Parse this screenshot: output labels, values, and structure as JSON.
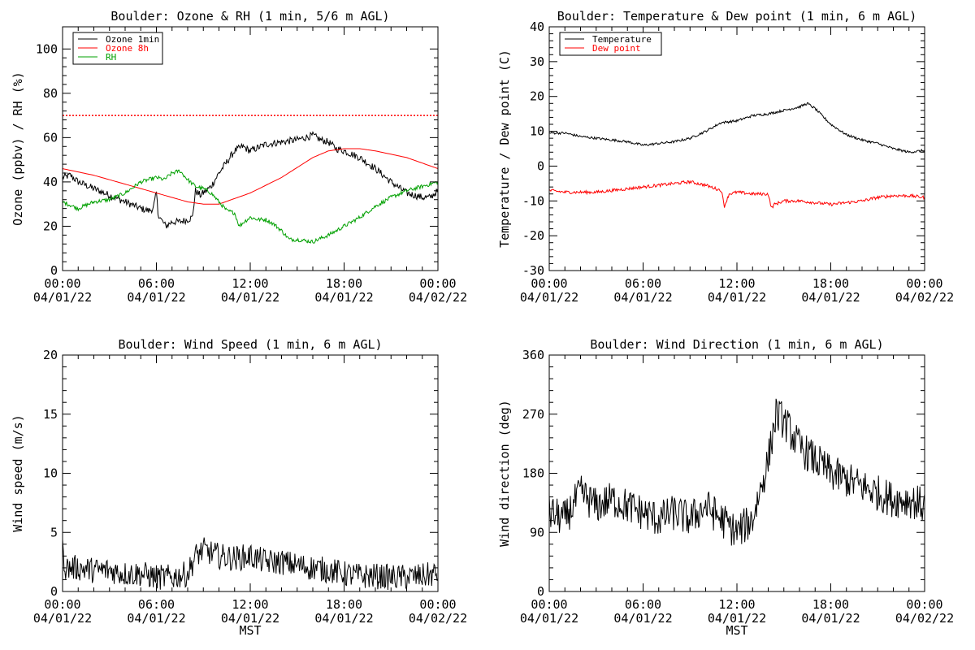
{
  "chart_data": [
    {
      "id": "ozone_rh",
      "type": "line",
      "title": "Boulder: Ozone & RH (1 min, 5/6 m AGL)",
      "ylabel": "Ozone (ppbv) / RH (%)",
      "xlabel": "",
      "ylim": [
        0,
        110
      ],
      "yticks": [
        0,
        20,
        40,
        60,
        80,
        100
      ],
      "yticklabels": [
        "0",
        "20",
        "40",
        "60",
        "80",
        "100"
      ],
      "xlim": [
        0,
        24
      ],
      "xticks": [
        0,
        6,
        12,
        18,
        24
      ],
      "xticklabels_time": [
        "00:00",
        "06:00",
        "12:00",
        "18:00",
        "00:00"
      ],
      "xticklabels_date": [
        "04/01/22",
        "04/01/22",
        "04/01/22",
        "04/01/22",
        "04/02/22"
      ],
      "legend": {
        "placement": "top-left",
        "entries": [
          {
            "name": "Ozone 1min",
            "color": "#000000"
          },
          {
            "name": "Ozone 8h",
            "color": "#ff0000"
          },
          {
            "name": "RH",
            "color": "#00a000"
          }
        ]
      },
      "reference_lines": [
        {
          "y": 70,
          "color": "#ff0000",
          "style": "dotted"
        }
      ],
      "series": [
        {
          "name": "Ozone 1min",
          "color": "#000000",
          "noise": 1.6,
          "x": [
            0,
            0.5,
            1,
            2,
            3,
            4,
            5,
            5.5,
            5.8,
            6,
            6.1,
            6.3,
            6.6,
            7,
            7.5,
            8,
            8.3,
            8.5,
            8.8,
            9,
            9.5,
            10,
            10.5,
            11,
            11.5,
            12,
            13,
            14,
            15,
            16,
            16.5,
            17,
            17.5,
            18,
            19,
            20,
            21,
            22,
            23,
            23.5,
            24
          ],
          "values": [
            42,
            43,
            40,
            37,
            34,
            31,
            28,
            27,
            28,
            35,
            26,
            23,
            20,
            22,
            22,
            23,
            24,
            36,
            34,
            35,
            38,
            44,
            49,
            54,
            56,
            54,
            57,
            58,
            59,
            61,
            59,
            58,
            55,
            54,
            51,
            46,
            40,
            35,
            33,
            33,
            36
          ]
        },
        {
          "name": "Ozone 8h",
          "color": "#ff0000",
          "noise": 0,
          "x": [
            0,
            2,
            4,
            6,
            8,
            9,
            10,
            12,
            14,
            16,
            17,
            18,
            19,
            20,
            22,
            24
          ],
          "values": [
            46,
            43,
            39,
            35,
            31,
            30,
            30,
            35,
            42,
            51,
            54,
            55,
            55,
            54,
            51,
            46
          ]
        },
        {
          "name": "RH",
          "color": "#00a000",
          "noise": 0.9,
          "x": [
            0,
            1,
            2,
            3,
            4,
            5,
            6,
            6.5,
            7,
            7.5,
            8,
            8.5,
            9,
            9.5,
            10,
            10.5,
            11,
            11.3,
            11.6,
            12,
            12.5,
            13,
            13.5,
            14,
            14.5,
            15,
            16,
            17,
            18,
            18.5,
            19,
            20,
            21,
            22,
            23,
            24
          ],
          "values": [
            31,
            28,
            31,
            32,
            35,
            40,
            42,
            41,
            44,
            45,
            41,
            38,
            37,
            35,
            31,
            27,
            26,
            20,
            22,
            24,
            23,
            23,
            21,
            18,
            14,
            14,
            13,
            16,
            20,
            22,
            24,
            29,
            33,
            36,
            38,
            40
          ]
        }
      ]
    },
    {
      "id": "temp_dew",
      "type": "line",
      "title": "Boulder: Temperature & Dew point (1 min, 6 m AGL)",
      "ylabel": "Temperature / Dew point (C)",
      "xlabel": "",
      "ylim": [
        -30,
        40
      ],
      "yticks": [
        -30,
        -20,
        -10,
        0,
        10,
        20,
        30,
        40
      ],
      "yticklabels": [
        "-30",
        "-20",
        "-10",
        "0",
        "10",
        "20",
        "30",
        "40"
      ],
      "xlim": [
        0,
        24
      ],
      "xticks": [
        0,
        6,
        12,
        18,
        24
      ],
      "xticklabels_time": [
        "00:00",
        "06:00",
        "12:00",
        "18:00",
        "00:00"
      ],
      "xticklabels_date": [
        "04/01/22",
        "04/01/22",
        "04/01/22",
        "04/01/22",
        "04/02/22"
      ],
      "legend": {
        "placement": "top-left",
        "entries": [
          {
            "name": "Temperature",
            "color": "#000000"
          },
          {
            "name": "Dew point",
            "color": "#ff0000"
          }
        ]
      },
      "reference_lines": [],
      "series": [
        {
          "name": "Temperature",
          "color": "#000000",
          "noise": 0.35,
          "x": [
            0,
            1,
            2,
            3,
            4,
            5,
            6,
            7,
            8,
            9,
            10,
            11,
            12,
            13,
            14,
            15,
            16,
            16.5,
            17,
            18,
            19,
            20,
            21,
            22,
            23,
            24
          ],
          "values": [
            9.5,
            9.5,
            8.5,
            8,
            7.5,
            7,
            6,
            6.5,
            7,
            8,
            10,
            12.5,
            13,
            14.5,
            15,
            16,
            17,
            18,
            16.5,
            12,
            9,
            7.5,
            6.5,
            5,
            4,
            4.5
          ]
        },
        {
          "name": "Dew point",
          "color": "#ff0000",
          "noise": 0.45,
          "x": [
            0,
            1,
            2,
            3,
            4,
            5,
            6,
            7,
            8,
            9,
            10,
            11,
            11.2,
            11.5,
            12,
            13,
            14,
            14.2,
            14.4,
            15,
            16,
            17,
            18,
            19,
            20,
            21,
            22,
            23,
            24
          ],
          "values": [
            -7,
            -7.5,
            -7.5,
            -7.5,
            -7,
            -6.5,
            -6,
            -5.5,
            -5,
            -4.5,
            -5.5,
            -7,
            -11.5,
            -8,
            -7.5,
            -8,
            -8,
            -12,
            -11,
            -10,
            -10,
            -10.5,
            -11,
            -10.5,
            -10,
            -9,
            -8.5,
            -8.5,
            -9
          ]
        }
      ]
    },
    {
      "id": "wind_speed",
      "type": "line",
      "title": "Boulder: Wind Speed (1 min, 6 m AGL)",
      "ylabel": "Wind speed (m/s)",
      "xlabel": "MST",
      "ylim": [
        0,
        20
      ],
      "yticks": [
        0,
        5,
        10,
        15,
        20
      ],
      "yticklabels": [
        "0",
        "5",
        "10",
        "15",
        "20"
      ],
      "xlim": [
        0,
        24
      ],
      "xticks": [
        0,
        6,
        12,
        18,
        24
      ],
      "xticklabels_time": [
        "00:00",
        "06:00",
        "12:00",
        "18:00",
        "00:00"
      ],
      "xticklabels_date": [
        "04/01/22",
        "04/01/22",
        "04/01/22",
        "04/01/22",
        "04/02/22"
      ],
      "legend": null,
      "reference_lines": [],
      "series": [
        {
          "name": "",
          "color": "#000000",
          "noise": 1.1,
          "floor": 0,
          "x": [
            0,
            0.2,
            1,
            2,
            3,
            4,
            5,
            6,
            7,
            8,
            8.5,
            9,
            10,
            11,
            12,
            13,
            14,
            15,
            16,
            17,
            18,
            19,
            20,
            21,
            22,
            23,
            24
          ],
          "values": [
            3.5,
            2,
            2,
            1.8,
            1.8,
            1.5,
            1.5,
            1.2,
            1.2,
            1.5,
            3,
            3.5,
            3,
            2.8,
            3,
            2.5,
            2.5,
            2.2,
            2,
            1.8,
            1.5,
            1.3,
            1.3,
            1.2,
            1.2,
            1.3,
            1.5
          ]
        }
      ]
    },
    {
      "id": "wind_dir",
      "type": "line",
      "title": "Boulder: Wind Direction (1 min, 6 m AGL)",
      "ylabel": "Wind direction (deg)",
      "xlabel": "MST",
      "ylim": [
        0,
        360
      ],
      "yticks": [
        0,
        90,
        180,
        270,
        360
      ],
      "yticklabels": [
        "0",
        "90",
        "180",
        "270",
        "360"
      ],
      "xlim": [
        0,
        24
      ],
      "xticks": [
        0,
        6,
        12,
        18,
        24
      ],
      "xticklabels_time": [
        "00:00",
        "06:00",
        "12:00",
        "18:00",
        "00:00"
      ],
      "xticklabels_date": [
        "04/01/22",
        "04/01/22",
        "04/01/22",
        "04/01/22",
        "04/02/22"
      ],
      "legend": null,
      "reference_lines": [],
      "series": [
        {
          "name": "",
          "color": "#000000",
          "noise": 28,
          "floor": 0,
          "ceil": 360,
          "x": [
            0,
            1,
            2,
            3,
            4,
            5,
            6,
            7,
            8,
            9,
            10,
            11,
            12,
            13,
            14,
            14.5,
            15,
            16,
            17,
            18,
            19,
            20,
            21,
            22,
            23,
            24
          ],
          "values": [
            120,
            110,
            150,
            130,
            140,
            130,
            120,
            110,
            120,
            110,
            130,
            110,
            90,
            110,
            200,
            270,
            260,
            220,
            200,
            180,
            170,
            160,
            150,
            140,
            140,
            130
          ]
        }
      ]
    }
  ]
}
